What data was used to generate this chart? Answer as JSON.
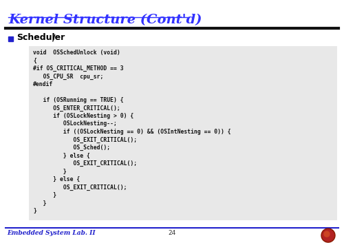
{
  "title": "Kernel Structure (Cont'd)",
  "title_color": "#3333ff",
  "background_color": "#ffffff",
  "section_bullet_color": "#2222cc",
  "section_text": "Scheduler",
  "section_slash": "/",
  "code_box_color": "#e8e8e8",
  "code_lines": [
    "void  OSSchedUnlock (void)",
    "{",
    "#if OS_CRITICAL_METHOD == 3",
    "   OS_CPU_SR  cpu_sr;",
    "#endif",
    "",
    "   if (OSRunning == TRUE) {",
    "      OS_ENTER_CRITICAL();",
    "      if (OSLockNesting > 0) {",
    "         OSLockNesting--;",
    "         if ((OSLockNesting == 0) && (OSIntNesting == 0)) {",
    "            OS_EXIT_CRITICAL();",
    "            OS_Sched();",
    "         } else {",
    "            OS_EXIT_CRITICAL();",
    "         }",
    "      } else {",
    "         OS_EXIT_CRITICAL();",
    "      }",
    "   }",
    "}"
  ],
  "footer_left": "Embedded System Lab. II",
  "footer_center": "24",
  "footer_color": "#2222cc",
  "separator_color": "#111111",
  "footer_separator_color": "#2222cc",
  "title_fontsize": 14,
  "section_fontsize": 9,
  "code_fontsize": 5.8,
  "footer_fontsize": 6.5
}
